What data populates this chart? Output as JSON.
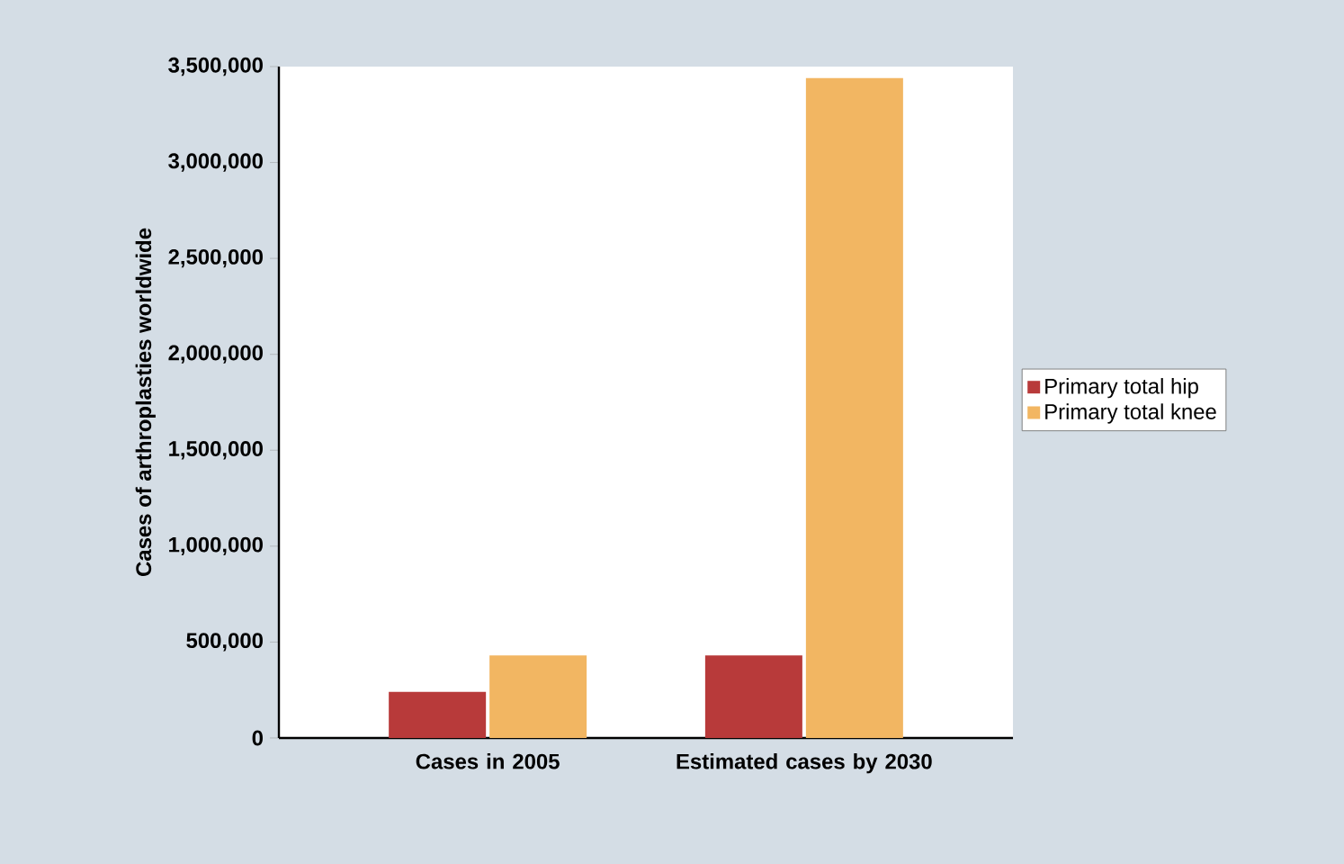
{
  "chart_data": {
    "type": "bar",
    "ylabel": "Cases of arthroplasties worldwide",
    "categories": [
      "Cases in 2005",
      "Estimated cases by 2030"
    ],
    "series": [
      {
        "name": "Primary total hip",
        "color": "#b83a3a",
        "values": [
          240000,
          430000
        ]
      },
      {
        "name": "Primary total knee",
        "color": "#f2b662",
        "values": [
          430000,
          3440000
        ]
      }
    ],
    "ylim": [
      0,
      3500000
    ],
    "yticks": [
      {
        "value": 0,
        "label": "0"
      },
      {
        "value": 500000,
        "label": "500,000"
      },
      {
        "value": 1000000,
        "label": "1,000,000"
      },
      {
        "value": 1500000,
        "label": "1,500,000"
      },
      {
        "value": 2000000,
        "label": "2,000,000"
      },
      {
        "value": 2500000,
        "label": "2,500,000"
      },
      {
        "value": 3000000,
        "label": "3,000,000"
      },
      {
        "value": 3500000,
        "label": "3,500,000"
      }
    ],
    "legend": "right",
    "grid": false
  }
}
